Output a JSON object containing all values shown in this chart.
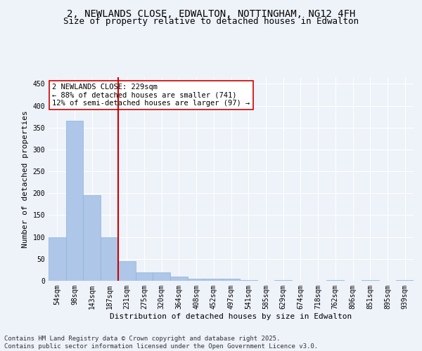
{
  "title": "2, NEWLANDS CLOSE, EDWALTON, NOTTINGHAM, NG12 4FH",
  "subtitle": "Size of property relative to detached houses in Edwalton",
  "xlabel": "Distribution of detached houses by size in Edwalton",
  "ylabel": "Number of detached properties",
  "categories": [
    "54sqm",
    "98sqm",
    "143sqm",
    "187sqm",
    "231sqm",
    "275sqm",
    "320sqm",
    "364sqm",
    "408sqm",
    "452sqm",
    "497sqm",
    "541sqm",
    "585sqm",
    "629sqm",
    "674sqm",
    "718sqm",
    "762sqm",
    "806sqm",
    "851sqm",
    "895sqm",
    "939sqm"
  ],
  "values": [
    100,
    365,
    195,
    100,
    45,
    20,
    20,
    10,
    5,
    5,
    5,
    2,
    0,
    2,
    0,
    0,
    2,
    0,
    2,
    0,
    2
  ],
  "bar_color": "#aec6e8",
  "bar_edge_color": "#8ab4d8",
  "vline_x": 4,
  "vline_color": "#cc0000",
  "annotation_text": "2 NEWLANDS CLOSE: 229sqm\n← 88% of detached houses are smaller (741)\n12% of semi-detached houses are larger (97) →",
  "annotation_box_color": "#ffffff",
  "annotation_box_edge_color": "#cc0000",
  "ylim": [
    0,
    465
  ],
  "yticks": [
    0,
    50,
    100,
    150,
    200,
    250,
    300,
    350,
    400,
    450
  ],
  "footer": "Contains HM Land Registry data © Crown copyright and database right 2025.\nContains public sector information licensed under the Open Government Licence v3.0.",
  "background_color": "#eef2f9",
  "grid_color": "#ffffff",
  "title_fontsize": 10,
  "subtitle_fontsize": 9,
  "label_fontsize": 8,
  "tick_fontsize": 7,
  "annotation_fontsize": 7.5,
  "footer_fontsize": 6.5
}
